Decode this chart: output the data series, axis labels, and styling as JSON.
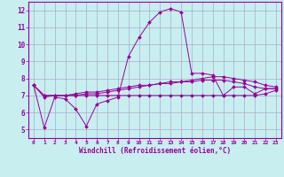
{
  "xlabel": "Windchill (Refroidissement éolien,°C)",
  "background_color": "#c8eef0",
  "line_color": "#990099",
  "grid_color": "#aaaacc",
  "xlim": [
    -0.5,
    23.5
  ],
  "ylim": [
    4.5,
    12.5
  ],
  "yticks": [
    5,
    6,
    7,
    8,
    9,
    10,
    11,
    12
  ],
  "xticks": [
    0,
    1,
    2,
    3,
    4,
    5,
    6,
    7,
    8,
    9,
    10,
    11,
    12,
    13,
    14,
    15,
    16,
    17,
    18,
    19,
    20,
    21,
    22,
    23
  ],
  "series": [
    [
      7.6,
      5.1,
      6.9,
      6.8,
      6.2,
      5.2,
      6.5,
      6.7,
      6.9,
      9.3,
      10.4,
      11.3,
      11.9,
      12.1,
      11.9,
      8.3,
      8.3,
      8.2,
      7.0,
      7.5,
      7.5,
      7.1,
      7.4,
      7.4
    ],
    [
      7.6,
      7.0,
      7.0,
      7.0,
      7.1,
      7.2,
      7.2,
      7.3,
      7.4,
      7.5,
      7.6,
      7.6,
      7.7,
      7.7,
      7.8,
      7.8,
      7.9,
      7.9,
      7.9,
      7.8,
      7.7,
      7.5,
      7.4,
      7.4
    ],
    [
      7.6,
      6.9,
      7.0,
      7.0,
      7.0,
      7.0,
      7.0,
      7.0,
      7.0,
      7.0,
      7.0,
      7.0,
      7.0,
      7.0,
      7.0,
      7.0,
      7.0,
      7.0,
      7.0,
      7.0,
      7.0,
      7.0,
      7.1,
      7.3
    ],
    [
      7.6,
      7.0,
      7.0,
      7.0,
      7.0,
      7.1,
      7.1,
      7.2,
      7.3,
      7.4,
      7.5,
      7.6,
      7.7,
      7.8,
      7.8,
      7.9,
      8.0,
      8.1,
      8.1,
      8.0,
      7.9,
      7.8,
      7.6,
      7.5
    ]
  ]
}
